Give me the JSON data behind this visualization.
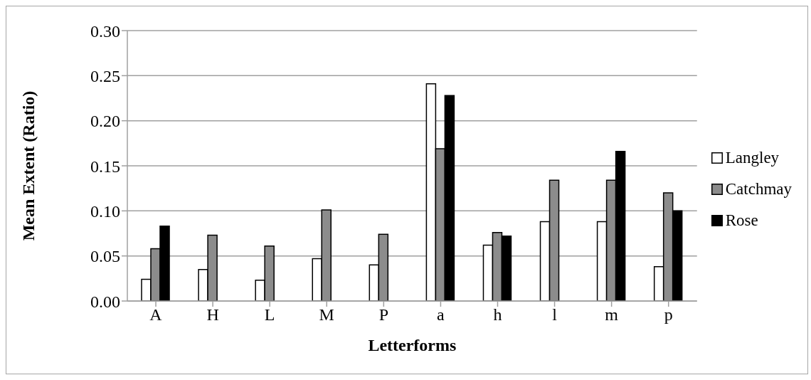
{
  "chart_data": {
    "type": "bar",
    "xlabel": "Letterforms",
    "ylabel": "Mean Extent (Ratio)",
    "categories": [
      "A",
      "H",
      "L",
      "M",
      "P",
      "a",
      "h",
      "l",
      "m",
      "p"
    ],
    "series": [
      {
        "name": "Langley",
        "color": "#ffffff",
        "values": [
          0.024,
          0.035,
          0.023,
          0.047,
          0.04,
          0.241,
          0.062,
          0.088,
          0.088,
          0.038
        ]
      },
      {
        "name": "Catchmay",
        "color": "#8c8c8c",
        "values": [
          0.058,
          0.073,
          0.061,
          0.101,
          0.074,
          0.169,
          0.076,
          0.134,
          0.134,
          0.12
        ]
      },
      {
        "name": "Rose",
        "color": "#000000",
        "values": [
          0.083,
          null,
          null,
          null,
          null,
          0.228,
          0.072,
          null,
          0.166,
          0.1
        ]
      }
    ],
    "ylim": [
      0,
      0.3
    ],
    "yticks": [
      {
        "value": 0,
        "label": "0.00"
      },
      {
        "value": 0.05,
        "label": "0.05"
      },
      {
        "value": 0.1,
        "label": "0.10"
      },
      {
        "value": 0.15,
        "label": "0.15"
      },
      {
        "value": 0.2,
        "label": "0.20"
      },
      {
        "value": 0.25,
        "label": "0.25"
      },
      {
        "value": 0.3,
        "label": "0.30"
      }
    ],
    "grid": "y",
    "legend": "right"
  }
}
